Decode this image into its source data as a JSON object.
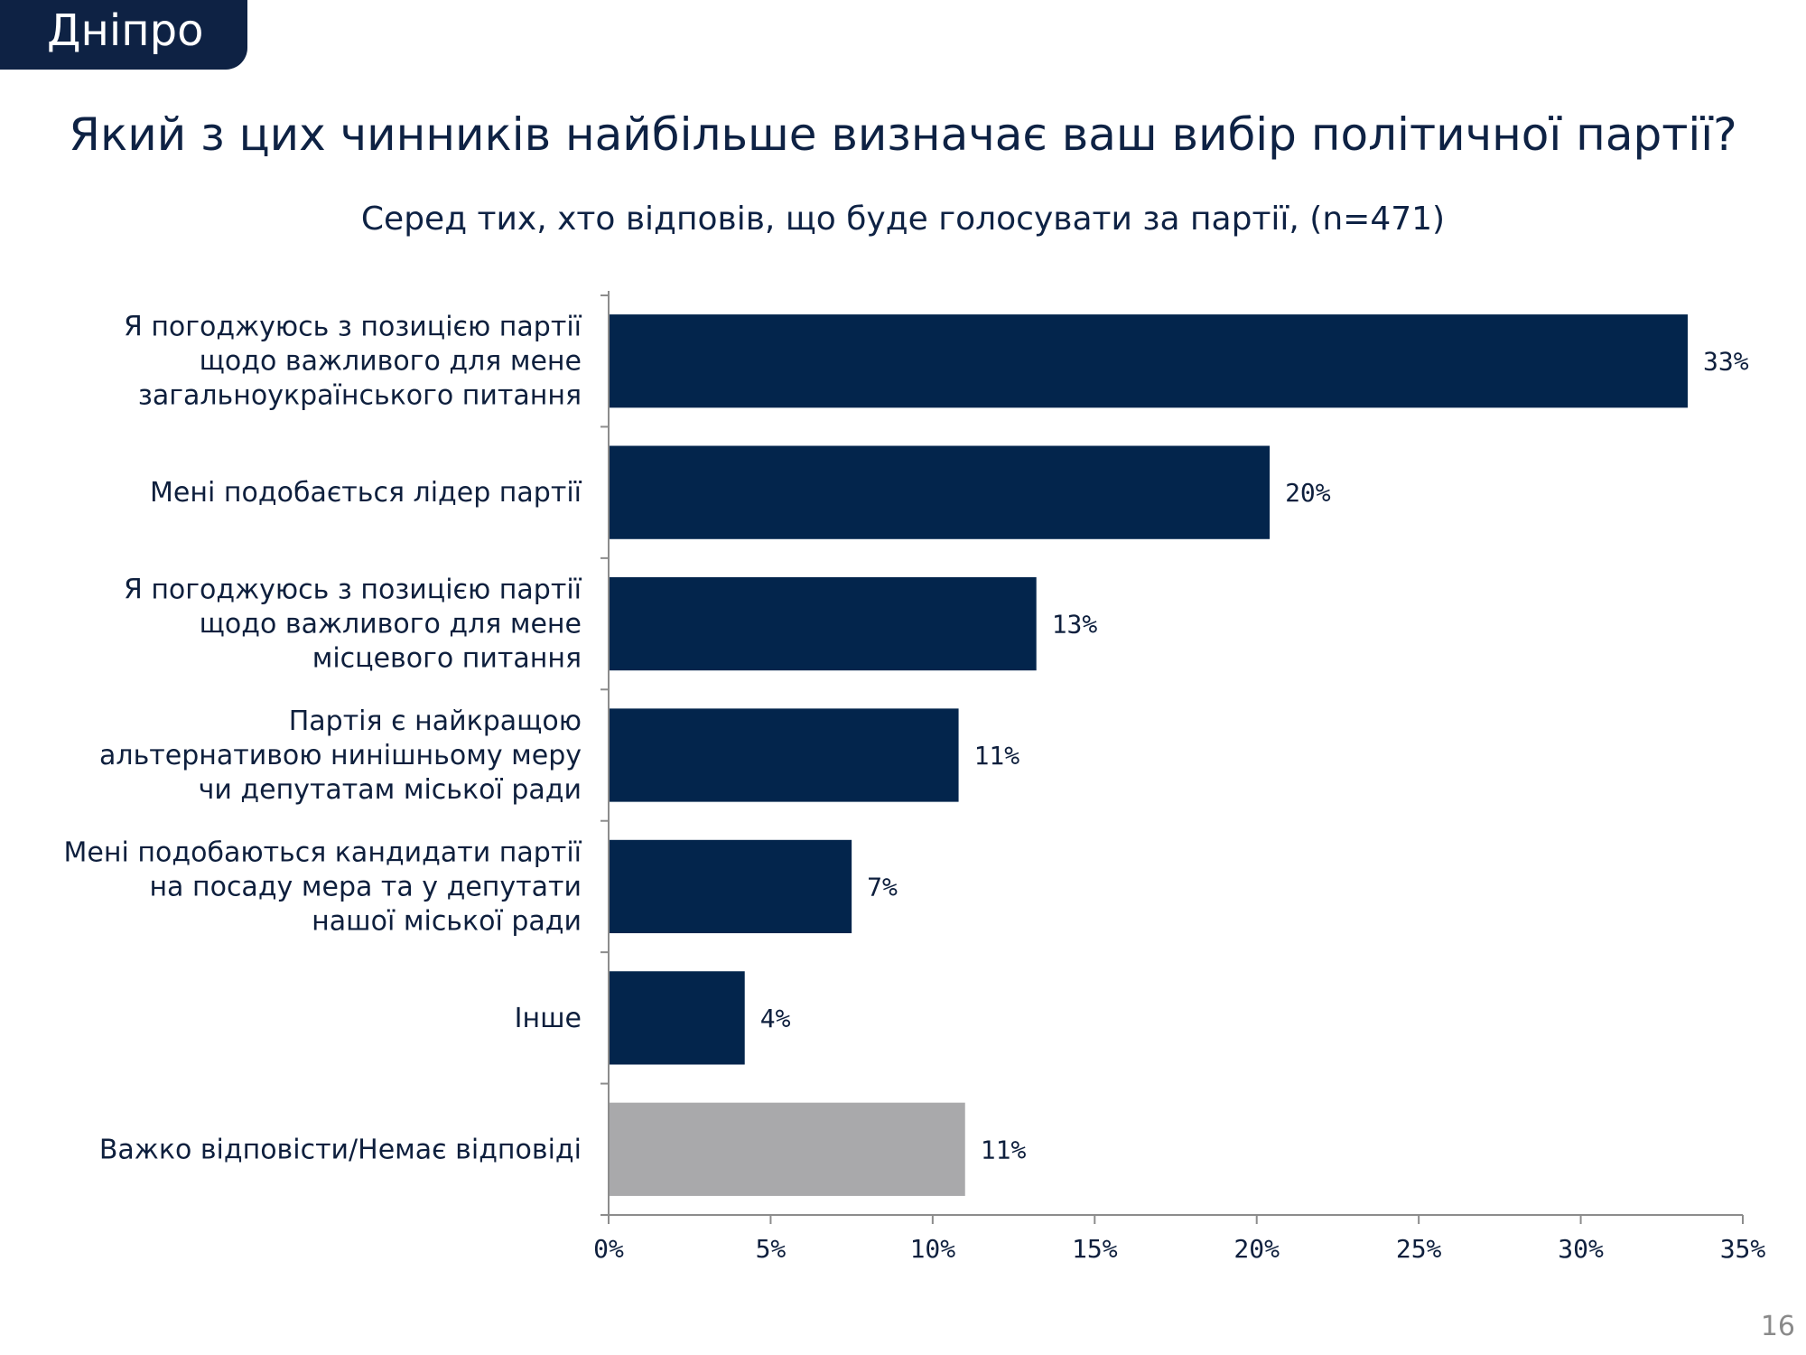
{
  "header": {
    "region": "Дніпро",
    "page_number": "16"
  },
  "chart_data": {
    "type": "bar",
    "orientation": "horizontal",
    "title": "Який з цих чинників найбільше визначає ваш вибір політичної партії?",
    "subtitle": "Серед тих, хто відповів, що буде голосувати за партії, (n=471)",
    "categories": [
      [
        "Я погоджуюсь з позицією партії",
        "щодо важливого для мене",
        "загальноукраїнського питання"
      ],
      [
        "Мені подобається лідер партії"
      ],
      [
        "Я погоджуюсь з позицією партії",
        "щодо важливого для мене",
        "місцевого питання"
      ],
      [
        "Партія є найкращою",
        "альтернативою нинішньому меру",
        "чи депутатам міської ради"
      ],
      [
        "Мені подобаються кандидати партії",
        "на посаду мера та у депутати",
        "нашої міської ради"
      ],
      [
        "Інше"
      ],
      [
        "Важко відповісти/Немає відповіді"
      ]
    ],
    "values": [
      33.3,
      20.4,
      13.2,
      10.8,
      7.5,
      4.2,
      11.0
    ],
    "value_labels": [
      "33%",
      "20%",
      "13%",
      "11%",
      "7%",
      "4%",
      "11%"
    ],
    "bar_colors": [
      "#03254c",
      "#03254c",
      "#03254c",
      "#03254c",
      "#03254c",
      "#03254c",
      "#a9a9ab"
    ],
    "xlim": [
      0,
      35
    ],
    "xticks": [
      0,
      5,
      10,
      15,
      20,
      25,
      30,
      35
    ],
    "xtick_labels": [
      "0%",
      "5%",
      "10%",
      "15%",
      "20%",
      "25%",
      "30%",
      "35%"
    ],
    "grid": false,
    "legend": "none"
  }
}
